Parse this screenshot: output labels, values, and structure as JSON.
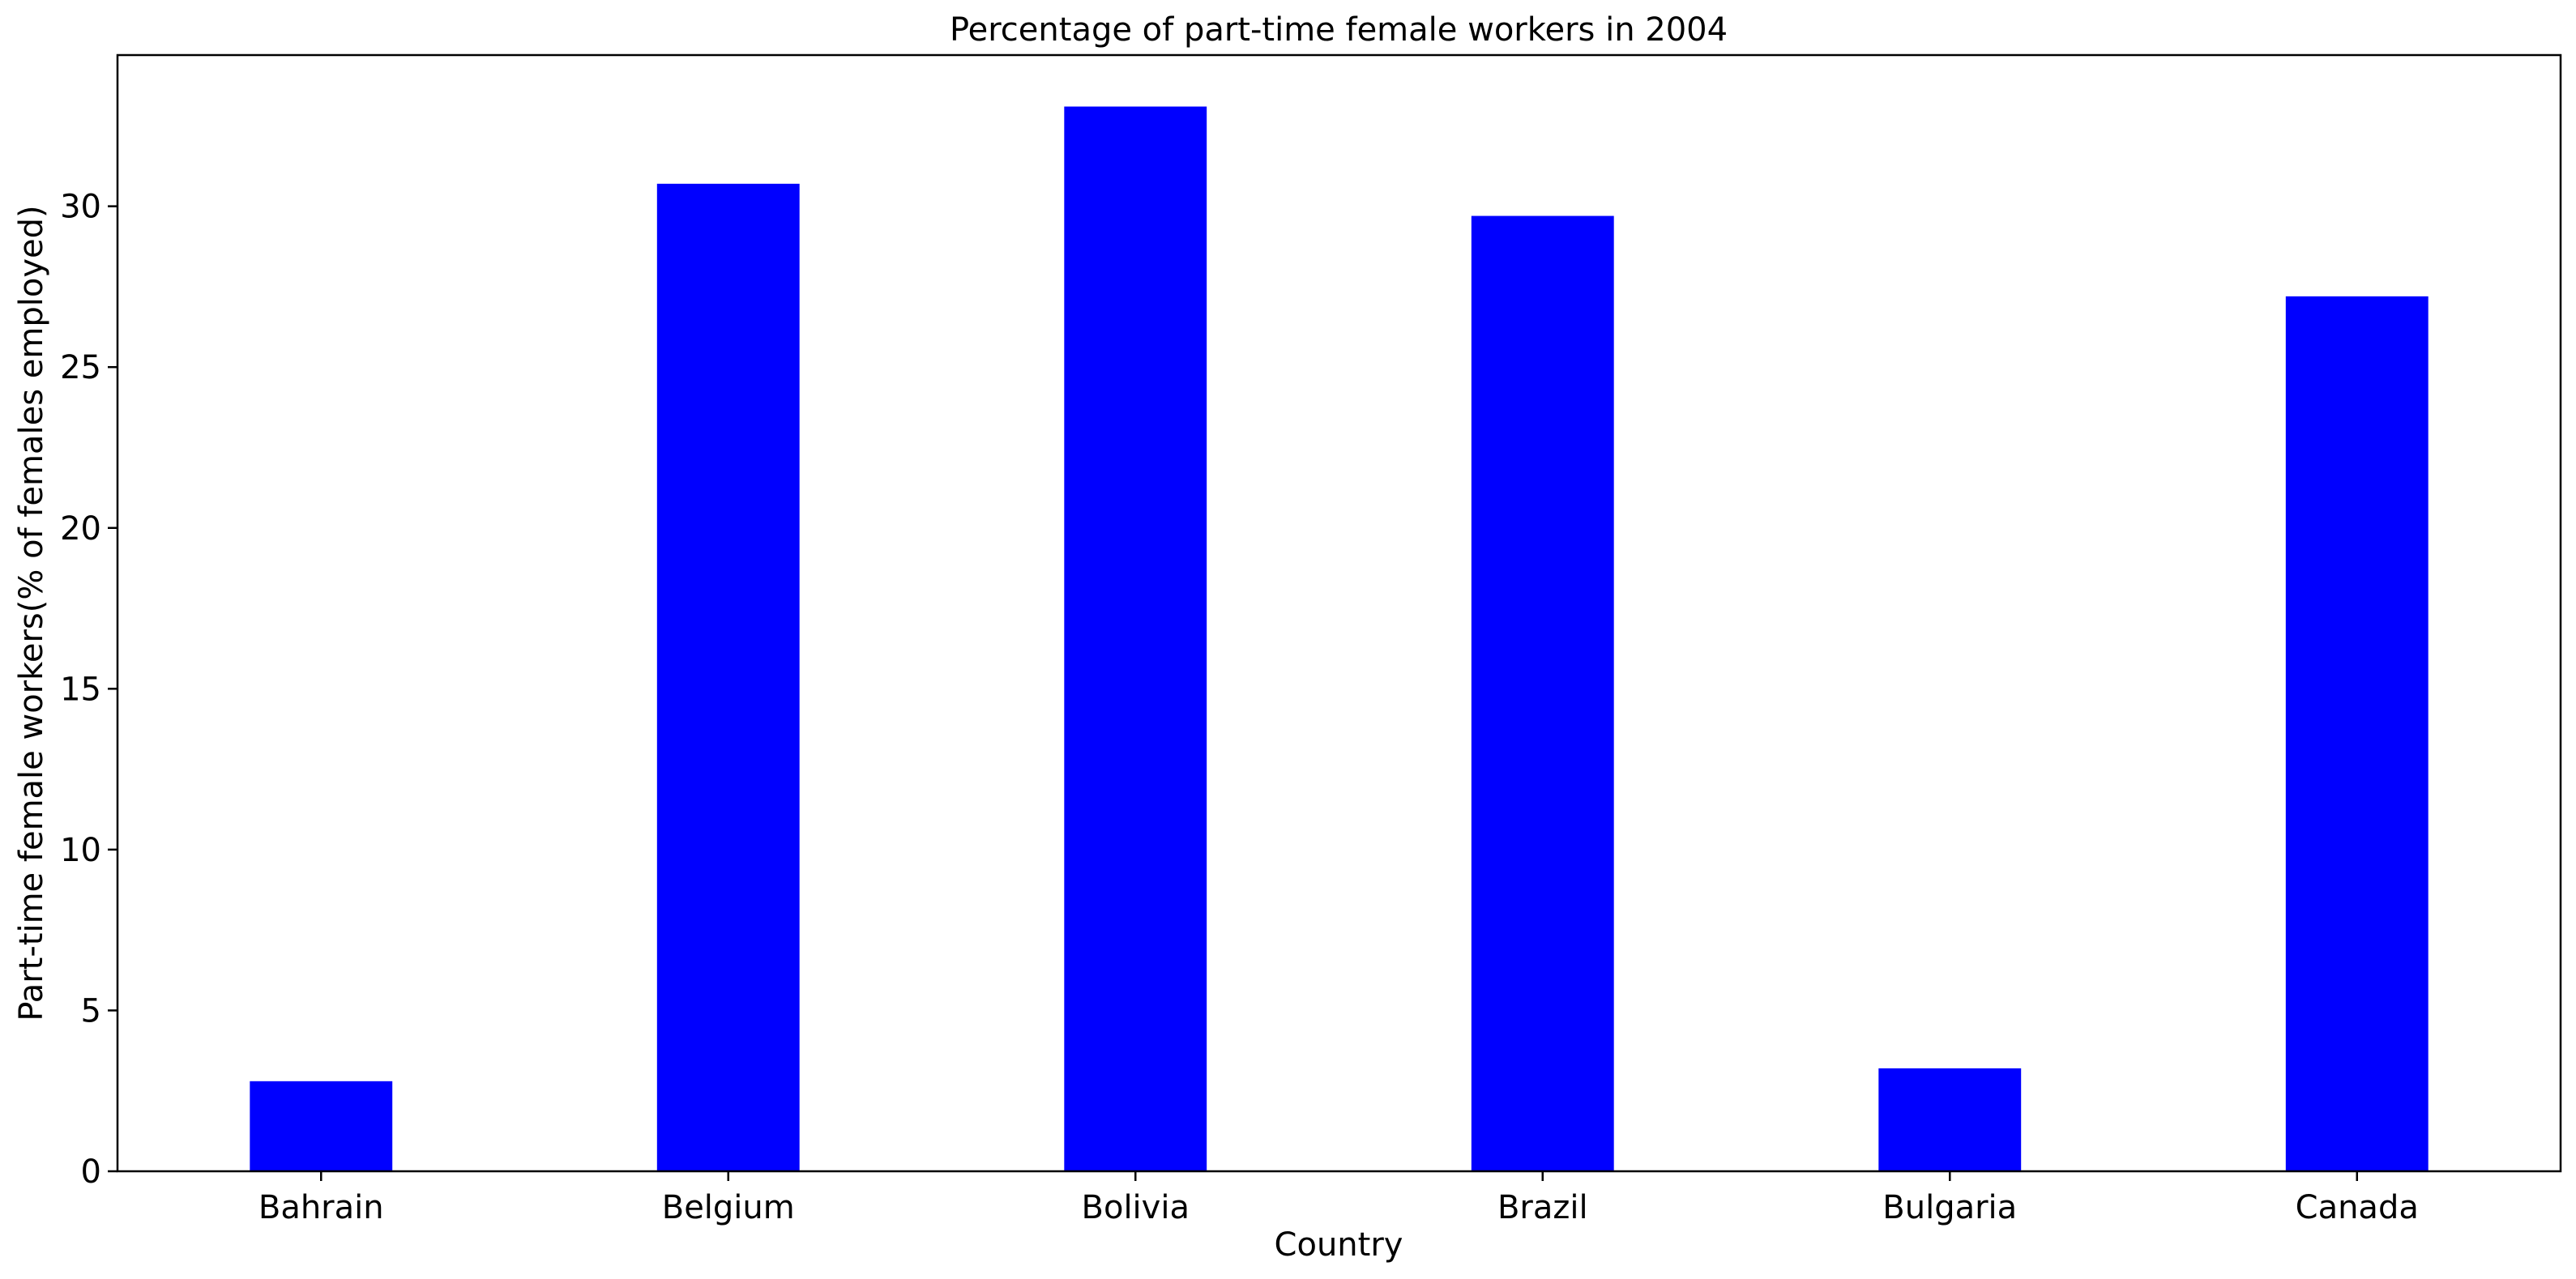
{
  "chart_data": {
    "type": "bar",
    "title": "Percentage of part-time female workers in 2004",
    "xlabel": "Country",
    "ylabel": "Part-time female workers(% of females employed)",
    "categories": [
      "Bahrain",
      "Belgium",
      "Bolivia",
      "Brazil",
      "Bulgaria",
      "Canada"
    ],
    "series": [
      {
        "values": [
          2.8,
          30.7,
          33.1,
          29.7,
          3.2,
          27.2
        ]
      }
    ],
    "ylim": [
      0,
      34.7
    ],
    "yticks": [
      0,
      5,
      10,
      15,
      20,
      25,
      30
    ],
    "bar_color": "#0000ff",
    "grid": false,
    "legend": "none"
  }
}
